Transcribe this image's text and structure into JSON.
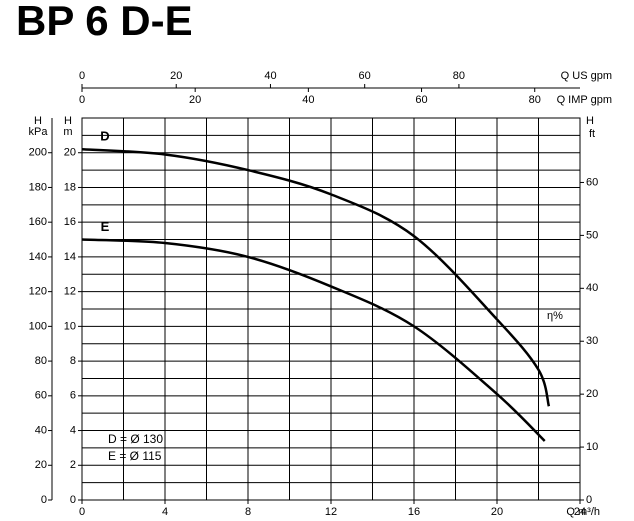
{
  "chart_data": {
    "type": "line",
    "title": "BP 6 D-E",
    "xlabel": "Q m³/h",
    "xlim": [
      0,
      24
    ],
    "xticks": [
      0,
      4,
      8,
      12,
      16,
      20,
      24
    ],
    "xgrid": [
      0,
      2,
      4,
      6,
      8,
      10,
      12,
      14,
      16,
      18,
      20,
      22,
      24
    ],
    "ylabel": [
      "H",
      "m"
    ],
    "ylim": [
      0,
      22
    ],
    "yticks": [
      0,
      2,
      4,
      6,
      8,
      10,
      12,
      14,
      16,
      18,
      20
    ],
    "ygrid": [
      0,
      1,
      2,
      3,
      4,
      5,
      6,
      7,
      8,
      9,
      10,
      11,
      12,
      13,
      14,
      15,
      16,
      17,
      18,
      19,
      20,
      21,
      22
    ],
    "kpa_axis": {
      "label": [
        "H",
        "kPa"
      ],
      "lim": [
        0,
        220
      ],
      "ticks": [
        0,
        20,
        40,
        60,
        80,
        100,
        120,
        140,
        160,
        180,
        200
      ]
    },
    "y2label": [
      "H",
      "ft"
    ],
    "y2lim": [
      0,
      72.18
    ],
    "y2ticks": [
      0,
      10,
      20,
      30,
      40,
      50,
      60
    ],
    "eta_label": "η%",
    "top_axes": [
      {
        "label": "Q US gpm",
        "lim": [
          0,
          105.7
        ],
        "ticks": [
          0,
          20,
          40,
          60,
          80
        ]
      },
      {
        "label": "Q IMP gpm",
        "lim": [
          0,
          88
        ],
        "ticks": [
          0,
          20,
          40,
          60,
          80
        ]
      }
    ],
    "series": [
      {
        "name": "D",
        "color": "#000000",
        "x": [
          0,
          4,
          8,
          12,
          16,
          20,
          22,
          22.5
        ],
        "values": [
          20.2,
          19.9,
          19.0,
          17.6,
          15.2,
          10.4,
          7.5,
          5.4
        ]
      },
      {
        "name": "E",
        "color": "#000000",
        "x": [
          0,
          4,
          8,
          12,
          16,
          20,
          22.3
        ],
        "values": [
          15.0,
          14.8,
          14.0,
          12.3,
          10.0,
          6.1,
          3.4
        ]
      }
    ],
    "legend": [
      "D = Ø 130",
      "E = Ø 115"
    ]
  }
}
